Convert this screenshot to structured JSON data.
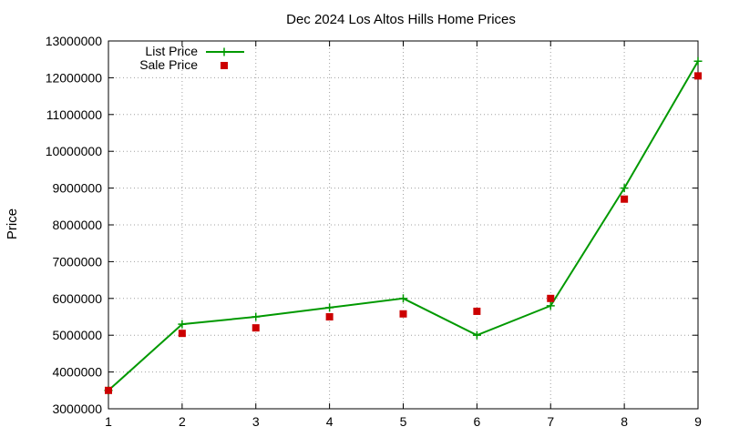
{
  "chart_data": {
    "type": "line",
    "title": "Dec 2024 Los Altos Hills Home Prices",
    "xlabel": "",
    "ylabel": "Price",
    "xlim": [
      1,
      9
    ],
    "ylim": [
      3000000,
      13000000
    ],
    "xticks": [
      "1",
      "2",
      "3",
      "4",
      "5",
      "6",
      "7",
      "8",
      "9"
    ],
    "yticks": [
      "3000000",
      "4000000",
      "5000000",
      "6000000",
      "7000000",
      "8000000",
      "9000000",
      "10000000",
      "11000000",
      "12000000",
      "13000000"
    ],
    "grid": true,
    "legend_position": "top-left",
    "series": [
      {
        "name": "List Price",
        "kind": "line-points",
        "color": "#009900",
        "x": [
          1,
          2,
          3,
          4,
          5,
          6,
          7,
          8,
          9
        ],
        "y": [
          3500000,
          5300000,
          5500000,
          5750000,
          6000000,
          5000000,
          5800000,
          9000000,
          12450000
        ]
      },
      {
        "name": "Sale Price",
        "kind": "points",
        "color": "#cc0000",
        "x": [
          1,
          2,
          3,
          4,
          5,
          6,
          7,
          8,
          9
        ],
        "y": [
          3500000,
          5050000,
          5200000,
          5500000,
          5580000,
          5650000,
          6000000,
          8700000,
          12050000
        ]
      }
    ]
  }
}
